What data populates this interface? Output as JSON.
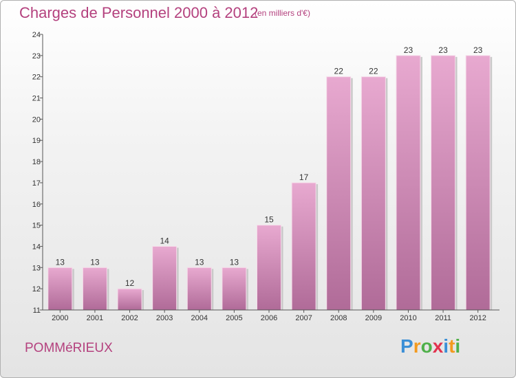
{
  "header": {
    "title": "Charges de Personnel 2000 à 2012",
    "subtitle": "(en milliers d'€)"
  },
  "footer": {
    "town": "POMMéRIEUX",
    "logo_letters": [
      "P",
      "r",
      "o",
      "x",
      "i",
      "t",
      "i"
    ]
  },
  "colors": {
    "title": "#b4417e",
    "bar_top": "#e8a9d0",
    "bar_bottom": "#b06b98",
    "logo": [
      "#3b8fd6",
      "#f39a1f",
      "#4fb04a",
      "#e2334f",
      "#3b8fd6",
      "#f39a1f",
      "#4fb04a"
    ]
  },
  "chart_data": {
    "type": "bar",
    "categories": [
      "2000",
      "2001",
      "2002",
      "2003",
      "2004",
      "2005",
      "2006",
      "2007",
      "2008",
      "2009",
      "2010",
      "2011",
      "2012"
    ],
    "values": [
      13,
      13,
      12,
      14,
      13,
      13,
      15,
      17,
      22,
      22,
      23,
      23,
      23
    ],
    "ylim": [
      11,
      24
    ],
    "yticks": [
      11,
      12,
      13,
      14,
      15,
      16,
      17,
      18,
      19,
      20,
      21,
      22,
      23,
      24
    ],
    "grid": false,
    "xlabel": "",
    "ylabel": ""
  }
}
